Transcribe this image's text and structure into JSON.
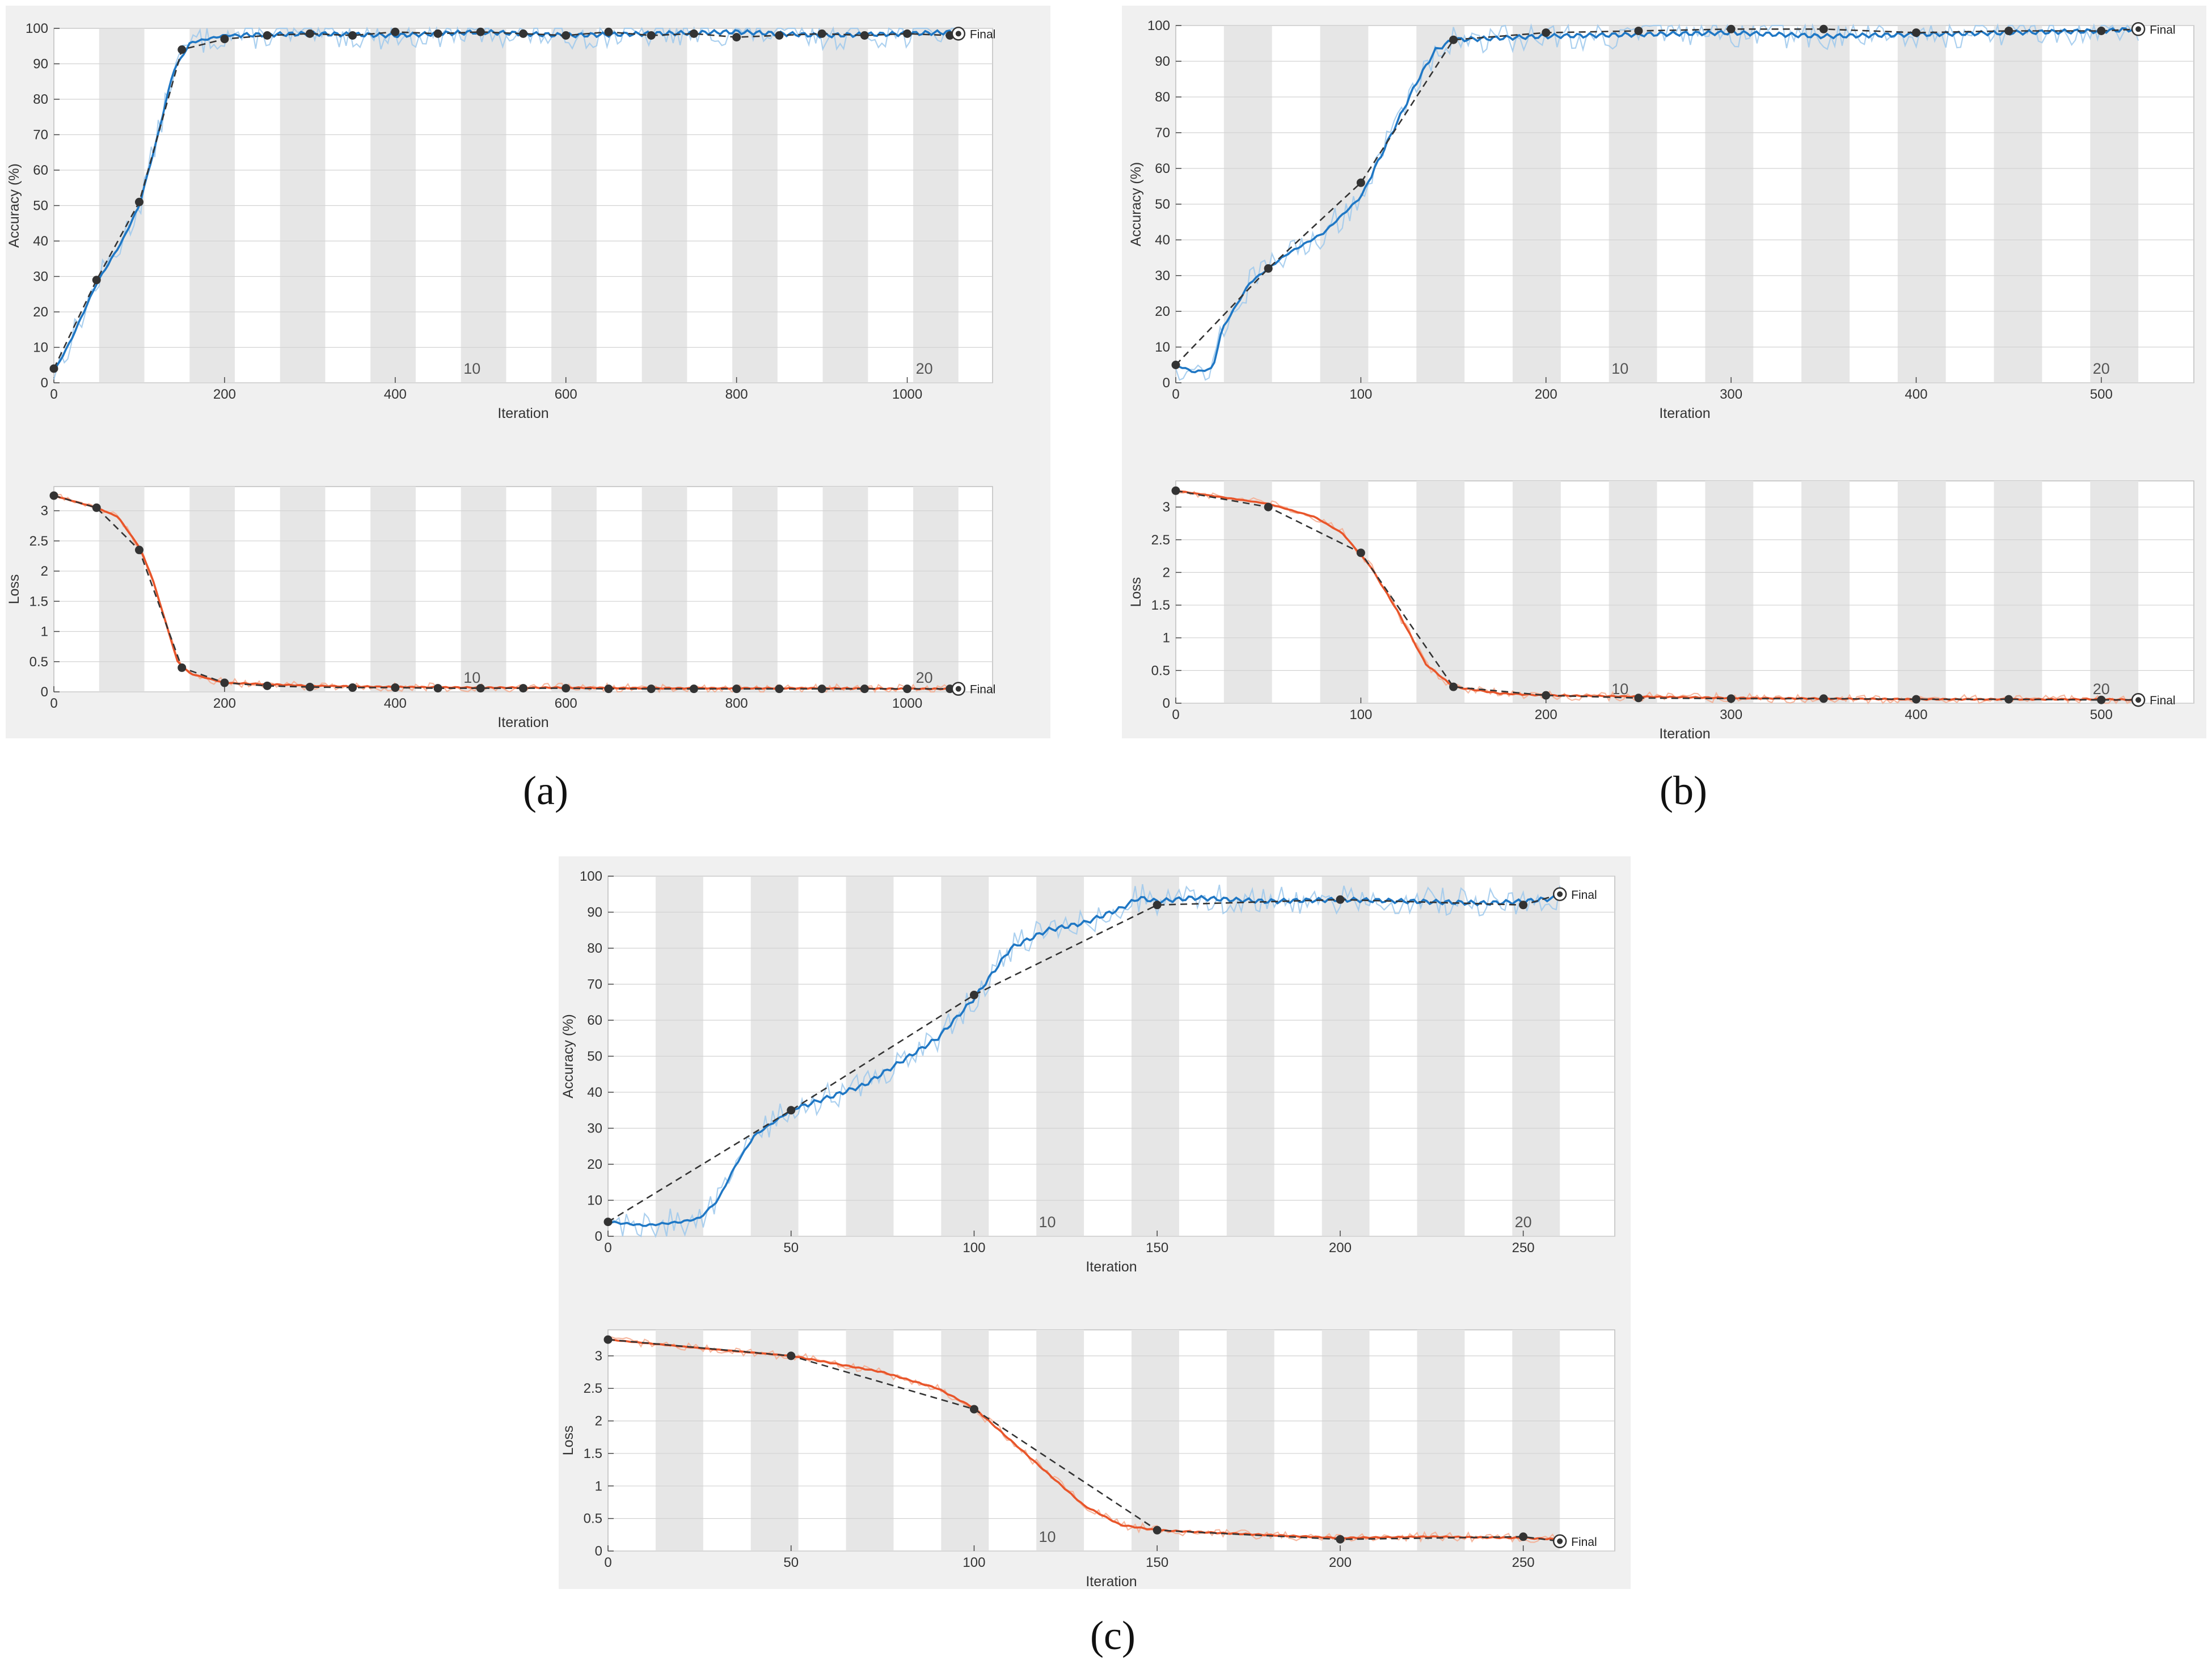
{
  "figure": {
    "captions": [
      "(a)",
      "(b)",
      "(c)"
    ],
    "colors": {
      "accuracy": "#1f77c4",
      "accuracy_raw": "#9cc8ec",
      "loss": "#e8552a",
      "loss_raw": "#f4ab8f",
      "validation": "#333333",
      "epoch_band": "#e6e6e6",
      "panel_bg": "#f0f0f0"
    }
  },
  "chart_data": [
    {
      "id": "a-accuracy",
      "type": "line",
      "ylabel": "Accuracy (%)",
      "xlabel": "Iteration",
      "xlim": [
        0,
        1100
      ],
      "ylim": [
        0,
        100
      ],
      "xticks": [
        0,
        200,
        400,
        600,
        800,
        1000
      ],
      "yticks": [
        0,
        10,
        20,
        30,
        40,
        50,
        60,
        70,
        80,
        90,
        100
      ],
      "epoch_labels": [
        {
          "text": "10",
          "x": 490
        },
        {
          "text": "20",
          "x": 1020
        }
      ],
      "final_label": "Final",
      "grid": true,
      "series": [
        {
          "role": "training-smoothed",
          "x": [
            0,
            20,
            50,
            80,
            100,
            120,
            140,
            160,
            200,
            300,
            400,
            500,
            600,
            700,
            800,
            900,
            1000,
            1060
          ],
          "y": [
            3,
            12,
            28,
            40,
            50,
            68,
            88,
            96,
            98,
            98.5,
            98,
            99,
            98,
            98.5,
            99,
            98,
            98.5,
            99
          ]
        },
        {
          "role": "validation",
          "x": [
            0,
            50,
            100,
            150,
            200,
            250,
            300,
            350,
            400,
            450,
            500,
            550,
            600,
            650,
            700,
            750,
            800,
            850,
            900,
            950,
            1000,
            1050,
            1060
          ],
          "y": [
            4,
            29,
            51,
            94,
            97,
            98,
            98.5,
            98,
            99,
            98.5,
            99,
            98.5,
            98,
            99,
            98,
            98.5,
            97.5,
            98,
            98.5,
            98,
            98.5,
            98,
            98.5
          ]
        }
      ]
    },
    {
      "id": "a-loss",
      "type": "line",
      "ylabel": "Loss",
      "xlabel": "Iteration",
      "xlim": [
        0,
        1100
      ],
      "ylim": [
        0,
        3.4
      ],
      "xticks": [
        0,
        200,
        400,
        600,
        800,
        1000
      ],
      "yticks": [
        0,
        0.5,
        1,
        1.5,
        2,
        2.5,
        3
      ],
      "epoch_labels": [
        {
          "text": "10",
          "x": 490
        },
        {
          "text": "20",
          "x": 1020
        }
      ],
      "final_label": "Final",
      "grid": true,
      "series": [
        {
          "role": "training-smoothed",
          "x": [
            0,
            25,
            50,
            75,
            100,
            115,
            130,
            145,
            160,
            200,
            300,
            400,
            500,
            600,
            700,
            800,
            900,
            1000,
            1060
          ],
          "y": [
            3.25,
            3.15,
            3.05,
            2.9,
            2.4,
            1.9,
            1.2,
            0.5,
            0.3,
            0.15,
            0.1,
            0.08,
            0.07,
            0.07,
            0.06,
            0.06,
            0.06,
            0.05,
            0.05
          ]
        },
        {
          "role": "validation",
          "x": [
            0,
            50,
            100,
            150,
            200,
            250,
            300,
            350,
            400,
            450,
            500,
            550,
            600,
            650,
            700,
            750,
            800,
            850,
            900,
            950,
            1000,
            1050,
            1060
          ],
          "y": [
            3.25,
            3.05,
            2.35,
            0.4,
            0.15,
            0.1,
            0.08,
            0.07,
            0.07,
            0.06,
            0.06,
            0.06,
            0.06,
            0.05,
            0.05,
            0.05,
            0.05,
            0.05,
            0.05,
            0.05,
            0.05,
            0.05,
            0.05
          ]
        }
      ]
    },
    {
      "id": "b-accuracy",
      "type": "line",
      "ylabel": "Accuracy (%)",
      "xlabel": "Iteration",
      "xlim": [
        0,
        550
      ],
      "ylim": [
        0,
        100
      ],
      "xticks": [
        0,
        100,
        200,
        300,
        400,
        500
      ],
      "yticks": [
        0,
        10,
        20,
        30,
        40,
        50,
        60,
        70,
        80,
        90,
        100
      ],
      "epoch_labels": [
        {
          "text": "10",
          "x": 240
        },
        {
          "text": "20",
          "x": 500
        }
      ],
      "final_label": "Final",
      "grid": true,
      "series": [
        {
          "role": "training-smoothed",
          "x": [
            0,
            10,
            20,
            25,
            40,
            60,
            80,
            100,
            115,
            130,
            140,
            150,
            200,
            250,
            300,
            350,
            400,
            450,
            500,
            520
          ],
          "y": [
            5,
            3,
            4,
            15,
            28,
            36,
            42,
            52,
            68,
            84,
            93,
            96,
            97,
            97.5,
            98,
            97,
            97.5,
            98,
            98.5,
            99
          ]
        },
        {
          "role": "validation",
          "x": [
            0,
            50,
            100,
            150,
            200,
            250,
            300,
            350,
            400,
            450,
            500,
            520
          ],
          "y": [
            5,
            32,
            56,
            96,
            98,
            98.5,
            99,
            99,
            98,
            98.5,
            98.5,
            99
          ]
        }
      ]
    },
    {
      "id": "b-loss",
      "type": "line",
      "ylabel": "Loss",
      "xlabel": "Iteration",
      "xlim": [
        0,
        550
      ],
      "ylim": [
        0,
        3.4
      ],
      "xticks": [
        0,
        100,
        200,
        300,
        400,
        500
      ],
      "yticks": [
        0,
        0.5,
        1,
        1.5,
        2,
        2.5,
        3
      ],
      "epoch_labels": [
        {
          "text": "10",
          "x": 240
        },
        {
          "text": "20",
          "x": 500
        }
      ],
      "final_label": "Final",
      "grid": true,
      "series": [
        {
          "role": "training-smoothed",
          "x": [
            0,
            25,
            50,
            75,
            90,
            105,
            120,
            135,
            150,
            175,
            200,
            250,
            300,
            350,
            400,
            450,
            500,
            520
          ],
          "y": [
            3.25,
            3.15,
            3.05,
            2.85,
            2.6,
            2.1,
            1.4,
            0.6,
            0.25,
            0.15,
            0.12,
            0.1,
            0.08,
            0.07,
            0.06,
            0.06,
            0.06,
            0.05
          ]
        },
        {
          "role": "validation",
          "x": [
            0,
            50,
            100,
            150,
            200,
            250,
            300,
            350,
            400,
            450,
            500,
            520
          ],
          "y": [
            3.25,
            3.0,
            2.3,
            0.25,
            0.12,
            0.08,
            0.07,
            0.07,
            0.06,
            0.06,
            0.05,
            0.05
          ]
        }
      ]
    },
    {
      "id": "c-accuracy",
      "type": "line",
      "ylabel": "Accuracy (%)",
      "xlabel": "Iteration",
      "xlim": [
        0,
        275
      ],
      "ylim": [
        0,
        100
      ],
      "xticks": [
        0,
        50,
        100,
        150,
        200,
        250
      ],
      "yticks": [
        0,
        10,
        20,
        30,
        40,
        50,
        60,
        70,
        80,
        90,
        100
      ],
      "epoch_labels": [
        {
          "text": "10",
          "x": 120
        },
        {
          "text": "20",
          "x": 250
        }
      ],
      "final_label": "Final",
      "grid": true,
      "series": [
        {
          "role": "training-smoothed",
          "x": [
            0,
            10,
            20,
            25,
            30,
            35,
            40,
            50,
            70,
            90,
            100,
            110,
            120,
            130,
            140,
            145,
            150,
            160,
            180,
            200,
            220,
            240,
            250,
            260
          ],
          "y": [
            4,
            3,
            4,
            5,
            10,
            20,
            28,
            35,
            42,
            55,
            66,
            80,
            85,
            87,
            91,
            94,
            93,
            94,
            93,
            93.5,
            93,
            92.5,
            93,
            94
          ]
        },
        {
          "role": "validation",
          "x": [
            0,
            50,
            100,
            150,
            200,
            250,
            260
          ],
          "y": [
            4,
            35,
            67,
            92,
            93.5,
            92,
            95
          ]
        }
      ]
    },
    {
      "id": "c-loss",
      "type": "line",
      "ylabel": "Loss",
      "xlabel": "Iteration",
      "xlim": [
        0,
        275
      ],
      "ylim": [
        0,
        3.4
      ],
      "xticks": [
        0,
        50,
        100,
        150,
        200,
        250
      ],
      "yticks": [
        0,
        0.5,
        1,
        1.5,
        2,
        2.5,
        3
      ],
      "epoch_labels": [
        {
          "text": "10",
          "x": 120
        }
      ],
      "final_label": "Final",
      "grid": true,
      "series": [
        {
          "role": "training-smoothed",
          "x": [
            0,
            25,
            50,
            75,
            90,
            100,
            110,
            120,
            130,
            140,
            150,
            170,
            200,
            225,
            250,
            260
          ],
          "y": [
            3.25,
            3.12,
            3.0,
            2.75,
            2.5,
            2.2,
            1.7,
            1.2,
            0.7,
            0.4,
            0.32,
            0.27,
            0.2,
            0.22,
            0.2,
            0.18
          ]
        },
        {
          "role": "validation",
          "x": [
            0,
            50,
            100,
            150,
            200,
            250,
            260
          ],
          "y": [
            3.25,
            3.0,
            2.18,
            0.32,
            0.18,
            0.22,
            0.15
          ]
        }
      ]
    }
  ]
}
